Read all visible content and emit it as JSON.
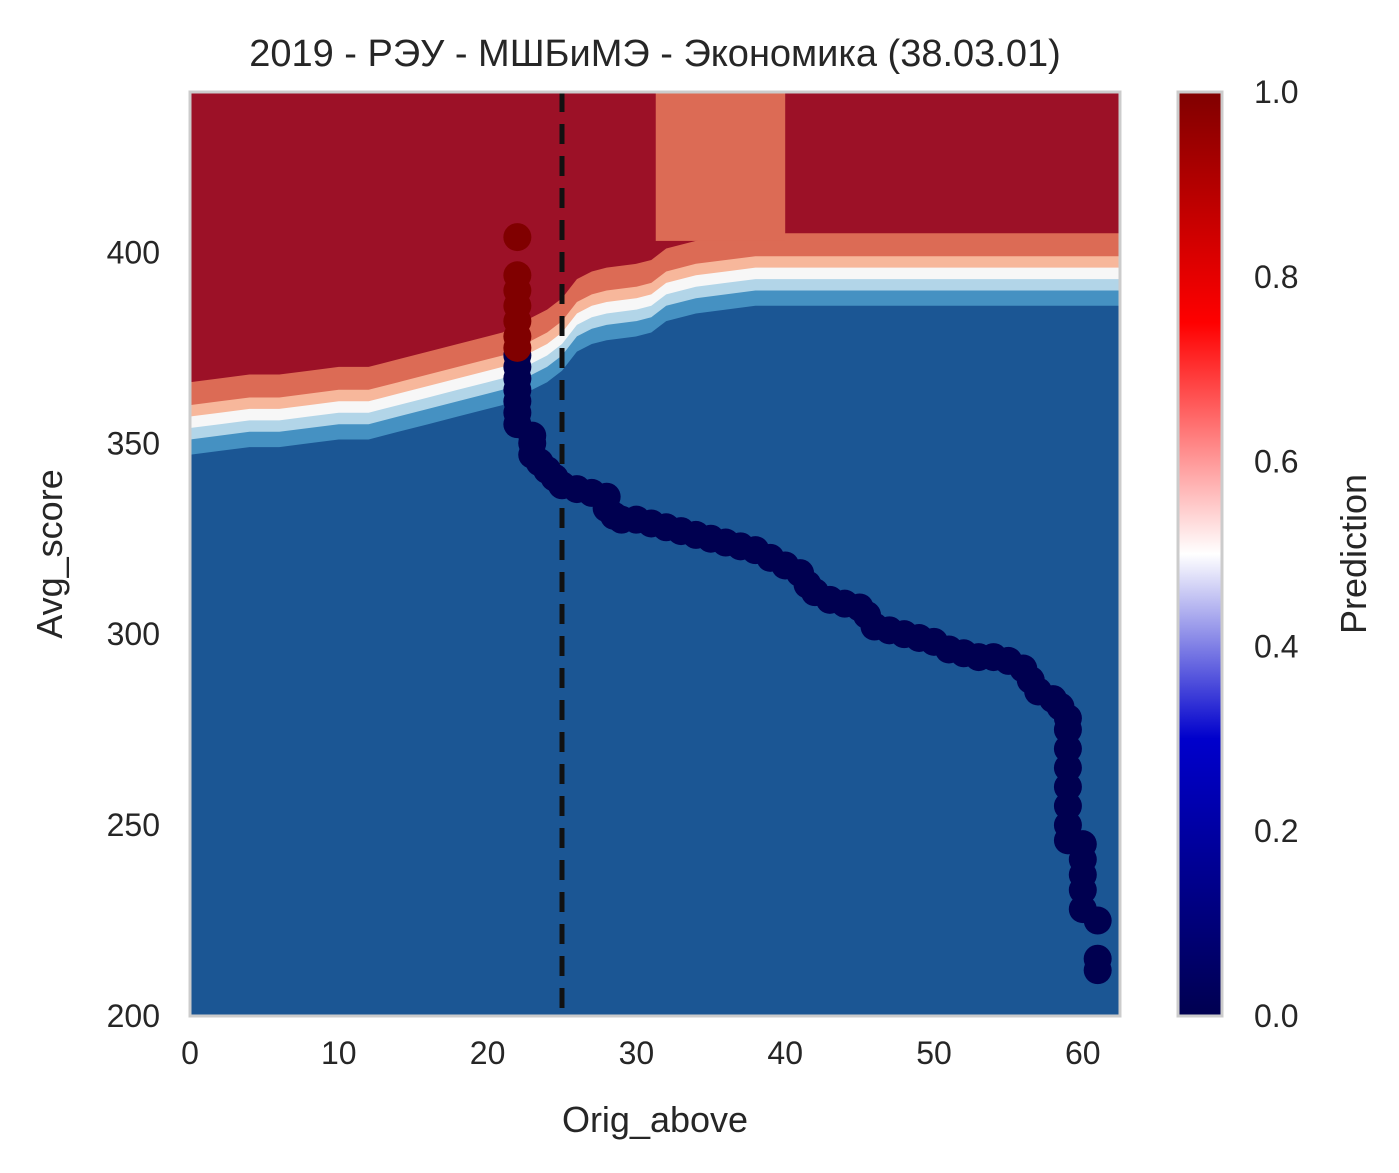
{
  "chart_data": {
    "type": "scatter",
    "title": "2019 - РЭУ - МШБиМЭ - Экономика (38.03.01)",
    "xlabel": "Orig_above",
    "ylabel": "Avg_score",
    "xlim": [
      0,
      62.5
    ],
    "ylim": [
      200,
      442
    ],
    "grid": false,
    "x_ticks": [
      "0",
      "10",
      "20",
      "30",
      "40",
      "50",
      "60"
    ],
    "y_ticks": [
      "200",
      "250",
      "300",
      "350",
      "400"
    ],
    "threshold_x": 25,
    "colorbar": {
      "label": "Prediction",
      "ticks": [
        "0.0",
        "0.2",
        "0.4",
        "0.6",
        "0.8",
        "1.0"
      ],
      "colors": [
        "#000050",
        "#0000cc",
        "#ffffff",
        "#ff0000",
        "#800000"
      ]
    },
    "contour_colors": {
      "blue_dark": "#1b5694",
      "blue_mid": "#4591c2",
      "blue_light": "#b2d5e8",
      "white": "#f7f7f7",
      "red_light": "#f7b79b",
      "red_mid": "#dc6b55",
      "red_dark": "#9c1127"
    },
    "boundary": [
      [
        0,
        347
      ],
      [
        2,
        348
      ],
      [
        4,
        349
      ],
      [
        6,
        349
      ],
      [
        8,
        350
      ],
      [
        10,
        351
      ],
      [
        12,
        351
      ],
      [
        14,
        353
      ],
      [
        16,
        355
      ],
      [
        18,
        357
      ],
      [
        20,
        359
      ],
      [
        21,
        360
      ],
      [
        22,
        362
      ],
      [
        23,
        364
      ],
      [
        24,
        366
      ],
      [
        25,
        369
      ],
      [
        26,
        374
      ],
      [
        27,
        376
      ],
      [
        28,
        377
      ],
      [
        30,
        378
      ],
      [
        31,
        379
      ],
      [
        32,
        382
      ],
      [
        34,
        384
      ],
      [
        36,
        385
      ],
      [
        38,
        386
      ],
      [
        40,
        386
      ],
      [
        45,
        386
      ],
      [
        50,
        386
      ],
      [
        55,
        386
      ],
      [
        60,
        386
      ],
      [
        62.5,
        386
      ]
    ],
    "points_admitted": [
      [
        22,
        404
      ],
      [
        22,
        394
      ],
      [
        22,
        390
      ],
      [
        22,
        386
      ],
      [
        22,
        382
      ],
      [
        22,
        378
      ],
      [
        22,
        375
      ]
    ],
    "points_rejected": [
      [
        22,
        373
      ],
      [
        22,
        370
      ],
      [
        22,
        367
      ],
      [
        22,
        364
      ],
      [
        22,
        361
      ],
      [
        22,
        358
      ],
      [
        22,
        355
      ],
      [
        23,
        352
      ],
      [
        23,
        350
      ],
      [
        23,
        347
      ],
      [
        23.5,
        345
      ],
      [
        24,
        343
      ],
      [
        24.5,
        341
      ],
      [
        25,
        339
      ],
      [
        26,
        338
      ],
      [
        27,
        337
      ],
      [
        28,
        336
      ],
      [
        28,
        333
      ],
      [
        28.5,
        331
      ],
      [
        29,
        330
      ],
      [
        30,
        330
      ],
      [
        31,
        329
      ],
      [
        32,
        328
      ],
      [
        33,
        327
      ],
      [
        34,
        326
      ],
      [
        35,
        325
      ],
      [
        36,
        324
      ],
      [
        37,
        323
      ],
      [
        38,
        322
      ],
      [
        39,
        320
      ],
      [
        40,
        318
      ],
      [
        41,
        316
      ],
      [
        41.5,
        313
      ],
      [
        42,
        311
      ],
      [
        43,
        309
      ],
      [
        44,
        308
      ],
      [
        45,
        307
      ],
      [
        45.5,
        305
      ],
      [
        46,
        302
      ],
      [
        47,
        301
      ],
      [
        48,
        300
      ],
      [
        49,
        299
      ],
      [
        50,
        298
      ],
      [
        51,
        296
      ],
      [
        52,
        295
      ],
      [
        53,
        294
      ],
      [
        54,
        294
      ],
      [
        55,
        293
      ],
      [
        56,
        291
      ],
      [
        56.5,
        288
      ],
      [
        57,
        285
      ],
      [
        58,
        283
      ],
      [
        58.5,
        281
      ],
      [
        59,
        278
      ],
      [
        59,
        275
      ],
      [
        59,
        270
      ],
      [
        59,
        265
      ],
      [
        59,
        260
      ],
      [
        59,
        255
      ],
      [
        59,
        250
      ],
      [
        59,
        246
      ],
      [
        60,
        245
      ],
      [
        60,
        241
      ],
      [
        60,
        237
      ],
      [
        60,
        233
      ],
      [
        60,
        228
      ],
      [
        61,
        225
      ],
      [
        61,
        215
      ],
      [
        61,
        212
      ]
    ]
  }
}
